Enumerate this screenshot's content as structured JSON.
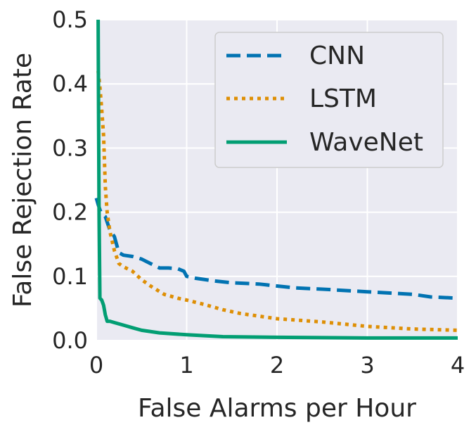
{
  "chart_data": {
    "type": "line",
    "title": "",
    "xlabel": "False Alarms per Hour",
    "ylabel": "False Rejection Rate",
    "xlim": [
      0,
      4
    ],
    "ylim": [
      0,
      0.5
    ],
    "x_ticks": [
      0,
      1,
      2,
      3,
      4
    ],
    "y_ticks": [
      0.0,
      0.1,
      0.2,
      0.3,
      0.4,
      0.5
    ],
    "x_tick_labels": [
      "0",
      "1",
      "2",
      "3",
      "4"
    ],
    "y_tick_labels": [
      "0.0",
      "0.1",
      "0.2",
      "0.3",
      "0.4",
      "0.5"
    ],
    "grid": true,
    "legend_position": "top-right",
    "series": [
      {
        "name": "CNN",
        "color": "#0173b2",
        "style": "dashed",
        "x": [
          0.0,
          0.02,
          0.05,
          0.1,
          0.15,
          0.2,
          0.25,
          0.3,
          0.4,
          0.5,
          0.6,
          0.7,
          0.8,
          0.9,
          0.97,
          1.0,
          1.1,
          1.3,
          1.5,
          1.8,
          2.0,
          2.2,
          2.5,
          3.0,
          3.5,
          3.7,
          4.0
        ],
        "y": [
          0.222,
          0.212,
          0.2,
          0.193,
          0.172,
          0.162,
          0.137,
          0.133,
          0.131,
          0.127,
          0.12,
          0.113,
          0.113,
          0.112,
          0.108,
          0.1,
          0.097,
          0.093,
          0.09,
          0.088,
          0.085,
          0.082,
          0.08,
          0.076,
          0.072,
          0.068,
          0.066
        ]
      },
      {
        "name": "LSTM",
        "color": "#de8f05",
        "style": "dotted",
        "x": [
          0.02,
          0.04,
          0.06,
          0.08,
          0.1,
          0.12,
          0.15,
          0.2,
          0.25,
          0.3,
          0.4,
          0.5,
          0.6,
          0.75,
          0.9,
          1.0,
          1.2,
          1.4,
          1.6,
          1.8,
          2.0,
          2.2,
          2.5,
          3.0,
          3.5,
          4.0
        ],
        "y": [
          0.42,
          0.395,
          0.36,
          0.32,
          0.24,
          0.2,
          0.17,
          0.14,
          0.12,
          0.115,
          0.108,
          0.095,
          0.085,
          0.072,
          0.066,
          0.063,
          0.056,
          0.048,
          0.042,
          0.038,
          0.034,
          0.032,
          0.029,
          0.022,
          0.018,
          0.016
        ]
      },
      {
        "name": "WaveNet",
        "color": "#029e73",
        "style": "solid",
        "x": [
          0.02,
          0.025,
          0.03,
          0.04,
          0.06,
          0.08,
          0.1,
          0.12,
          0.15,
          0.2,
          0.3,
          0.4,
          0.5,
          0.7,
          1.0,
          1.4,
          2.0,
          3.0,
          4.0
        ],
        "y": [
          0.5,
          0.35,
          0.2,
          0.066,
          0.063,
          0.055,
          0.04,
          0.03,
          0.03,
          0.028,
          0.024,
          0.02,
          0.016,
          0.012,
          0.009,
          0.006,
          0.005,
          0.004,
          0.004
        ]
      }
    ]
  }
}
